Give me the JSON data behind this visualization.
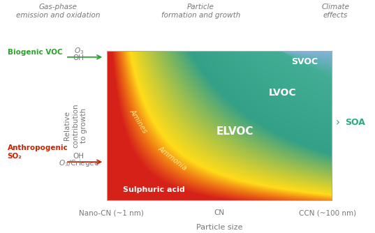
{
  "title_top_left": "Gas-phase\nemission and oxidation",
  "title_top_center": "Particle\nformation and growth",
  "title_top_right": "Climate\neffects",
  "biogenic_label": "Biogenic VOC",
  "anthropogenic_label1": "Anthropogenic",
  "anthropogenic_label2": "SO₂",
  "ylabel": "Relative\ncontribution\nto growth",
  "xlabel": "Particle size",
  "xtick_labels": [
    "Nano-CN (~1 nm)",
    "CN",
    "CCN (~100 nm)"
  ],
  "xtick_positions": [
    0.0,
    0.5,
    1.0
  ],
  "soa_label": "SOA",
  "svoc_label": "SVOC",
  "lvoc_label": "LVOC",
  "elvoc_label": "ELVOC",
  "amines_label": "Amines",
  "ammonia_label": "Ammonia",
  "sulphuric_label": "Sulphuric acid",
  "color_biogenic": "#2ca02c",
  "color_anthropogenic": "#cc2200",
  "color_soa": "#2aaa80",
  "color_text": "#777777",
  "background": "#ffffff"
}
